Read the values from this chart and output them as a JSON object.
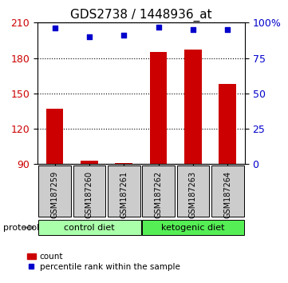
{
  "title": "GDS2738 / 1448936_at",
  "samples": [
    "GSM187259",
    "GSM187260",
    "GSM187261",
    "GSM187262",
    "GSM187263",
    "GSM187264"
  ],
  "counts": [
    137,
    93,
    91,
    185,
    187,
    158
  ],
  "percentile_ranks": [
    96,
    90,
    91,
    97,
    95,
    95
  ],
  "left_ylim": [
    90,
    210
  ],
  "right_ylim": [
    0,
    100
  ],
  "left_yticks": [
    90,
    120,
    150,
    180,
    210
  ],
  "right_yticks": [
    0,
    25,
    50,
    75,
    100
  ],
  "right_yticklabels": [
    "0",
    "25",
    "50",
    "75",
    "100%"
  ],
  "bar_color": "#cc0000",
  "dot_color": "#0000cc",
  "bar_width": 0.5,
  "grid_color": "#000000",
  "grid_linestyle": "dotted",
  "bg_plot": "#ffffff",
  "bg_xticklabels": "#cccccc",
  "group1_label": "control diet",
  "group2_label": "ketogenic diet",
  "group1_color": "#aaffaa",
  "group2_color": "#55ee55",
  "group1_indices": [
    0,
    1,
    2
  ],
  "group2_indices": [
    3,
    4,
    5
  ],
  "legend_count_label": "count",
  "legend_pct_label": "percentile rank within the sample",
  "protocol_label": "protocol",
  "left_axis_color": "#cc0000",
  "right_axis_color": "#0000cc",
  "title_fontsize": 11,
  "tick_fontsize": 9,
  "label_fontsize": 9
}
